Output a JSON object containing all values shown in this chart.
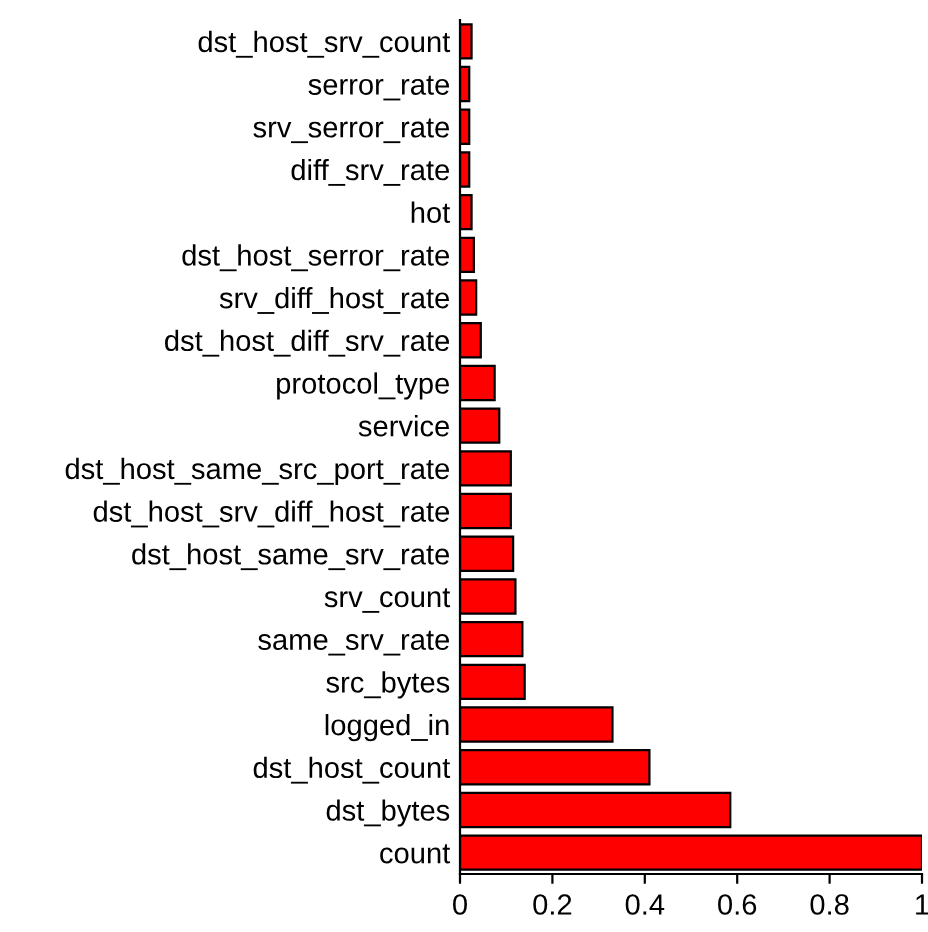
{
  "chart_data": {
    "type": "bar",
    "orientation": "horizontal",
    "categories": [
      "dst_host_srv_count",
      "serror_rate",
      "srv_serror_rate",
      "diff_srv_rate",
      "hot",
      "dst_host_serror_rate",
      "srv_diff_host_rate",
      "dst_host_diff_srv_rate",
      "protocol_type",
      "service",
      "dst_host_same_src_port_rate",
      "dst_host_srv_diff_host_rate",
      "dst_host_same_srv_rate",
      "srv_count",
      "same_srv_rate",
      "src_bytes",
      "logged_in",
      "dst_host_count",
      "dst_bytes",
      "count"
    ],
    "values": [
      0.025,
      0.02,
      0.02,
      0.02,
      0.025,
      0.03,
      0.035,
      0.045,
      0.075,
      0.085,
      0.11,
      0.11,
      0.115,
      0.12,
      0.135,
      0.14,
      0.33,
      0.41,
      0.585,
      1.0
    ],
    "color": "#ff0000",
    "xlim": [
      0,
      1
    ],
    "xticks": [
      0,
      0.2,
      0.4,
      0.6,
      0.8,
      1
    ],
    "grid": false
  }
}
